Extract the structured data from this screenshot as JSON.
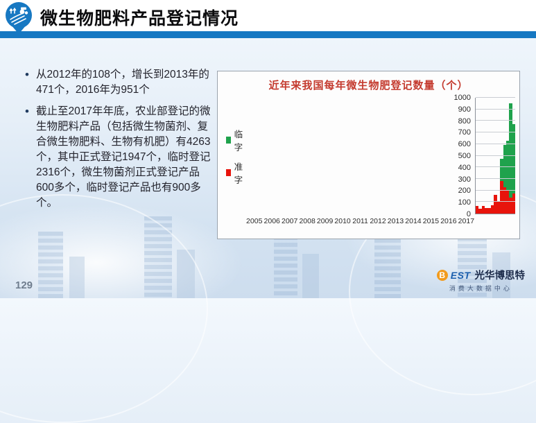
{
  "header": {
    "title": "微生物肥料产品登记情况"
  },
  "bullets": [
    "从2012年的108个，增长到2013年的471个，2016年为951个",
    "截止至2017年年底，农业部登记的微生物肥料产品（包括微生物菌剂、复合微生物肥料、生物有机肥）有4263个，其中正式登记1947个，临时登记2316个，微生物菌剂正式登记产品600多个，临时登记产品也有900多个。"
  ],
  "chart_data": {
    "type": "bar",
    "stacked": true,
    "title": "近年来我国每年微生物肥登记数量（个）",
    "categories": [
      "2005",
      "2006",
      "2007",
      "2008",
      "2009",
      "2010",
      "2011",
      "2012",
      "2013",
      "2014",
      "2015",
      "2016",
      "2017"
    ],
    "series": [
      {
        "name": "临字",
        "color": "#1fa24c",
        "values": [
          0,
          0,
          0,
          0,
          0,
          0,
          0,
          0,
          191,
          365,
          425,
          816,
          600
        ]
      },
      {
        "name": "准字",
        "color": "#e8140c",
        "values": [
          65,
          45,
          65,
          50,
          50,
          70,
          160,
          108,
          280,
          225,
          205,
          135,
          175
        ]
      }
    ],
    "ylim": [
      0,
      1000
    ],
    "ytick_step": 100,
    "grid": true,
    "legend_position": "right",
    "title_color": "#c43a2e"
  },
  "footer": {
    "page_number": "129",
    "brand": {
      "best_b": "B",
      "best_rest": "EST",
      "name": "光华博思特",
      "subtitle": "消费大数据中心"
    }
  },
  "colors": {
    "accent_blue": "#1778c2",
    "bar_green": "#1fa24c",
    "bar_red": "#e8140c"
  }
}
